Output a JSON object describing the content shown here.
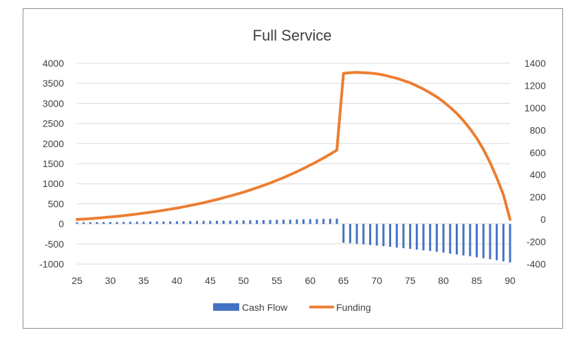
{
  "chart_data": {
    "type": "bar+line",
    "title": "Full Service",
    "x_ticks": [
      25,
      30,
      35,
      40,
      45,
      50,
      55,
      60,
      65,
      70,
      75,
      80,
      85,
      90
    ],
    "x_range": [
      25,
      90
    ],
    "left_axis": {
      "ylim": [
        -1000,
        4000
      ],
      "ticks": [
        4000,
        3500,
        3000,
        2500,
        2000,
        1500,
        1000,
        500,
        0,
        -500,
        -1000
      ]
    },
    "right_axis": {
      "ylim": [
        -400,
        1400
      ],
      "ticks": [
        1400,
        1200,
        1000,
        800,
        600,
        400,
        200,
        0,
        -200,
        -400
      ]
    },
    "gridlines": true,
    "legend_position": "bottom",
    "series": [
      {
        "name": "Cash Flow",
        "type": "bar",
        "axis": "left",
        "color": "#4472C4",
        "x": [
          25,
          26,
          27,
          28,
          29,
          30,
          31,
          32,
          33,
          34,
          35,
          36,
          37,
          38,
          39,
          40,
          41,
          42,
          43,
          44,
          45,
          46,
          47,
          48,
          49,
          50,
          51,
          52,
          53,
          54,
          55,
          56,
          57,
          58,
          59,
          60,
          61,
          62,
          63,
          64,
          65,
          66,
          67,
          68,
          69,
          70,
          71,
          72,
          73,
          74,
          75,
          76,
          77,
          78,
          79,
          80,
          81,
          82,
          83,
          84,
          85,
          86,
          87,
          88,
          89,
          90
        ],
        "values": [
          40,
          42,
          43,
          45,
          46,
          48,
          49,
          51,
          52,
          54,
          56,
          57,
          59,
          61,
          63,
          65,
          67,
          69,
          71,
          73,
          75,
          78,
          80,
          82,
          85,
          87,
          90,
          93,
          95,
          98,
          101,
          104,
          107,
          110,
          113,
          117,
          120,
          124,
          128,
          132,
          -470,
          -480,
          -495,
          -510,
          -525,
          -540,
          -555,
          -570,
          -590,
          -605,
          -620,
          -640,
          -660,
          -675,
          -695,
          -715,
          -740,
          -760,
          -785,
          -805,
          -830,
          -855,
          -880,
          -905,
          -935,
          -960
        ]
      },
      {
        "name": "Funding",
        "type": "line",
        "axis": "right",
        "color": "#ED7D31",
        "x": [
          25,
          26,
          27,
          28,
          29,
          30,
          31,
          32,
          33,
          34,
          35,
          36,
          37,
          38,
          39,
          40,
          41,
          42,
          43,
          44,
          45,
          46,
          47,
          48,
          49,
          50,
          51,
          52,
          53,
          54,
          55,
          56,
          57,
          58,
          59,
          60,
          61,
          62,
          63,
          64,
          65,
          66,
          67,
          68,
          69,
          70,
          71,
          72,
          73,
          74,
          75,
          76,
          77,
          78,
          79,
          80,
          81,
          82,
          83,
          84,
          85,
          86,
          87,
          88,
          89,
          90
        ],
        "values": [
          0,
          3,
          7,
          12,
          17,
          22,
          28,
          34,
          41,
          48,
          56,
          64,
          73,
          82,
          92,
          102,
          113,
          125,
          137,
          150,
          164,
          178,
          194,
          210,
          227,
          245,
          264,
          284,
          305,
          327,
          351,
          375,
          401,
          428,
          457,
          487,
          518,
          551,
          585,
          621,
          1310,
          1315,
          1318,
          1315,
          1312,
          1305,
          1295,
          1280,
          1265,
          1245,
          1225,
          1198,
          1168,
          1135,
          1098,
          1055,
          1005,
          950,
          885,
          812,
          728,
          628,
          510,
          375,
          222,
          0
        ]
      }
    ]
  }
}
